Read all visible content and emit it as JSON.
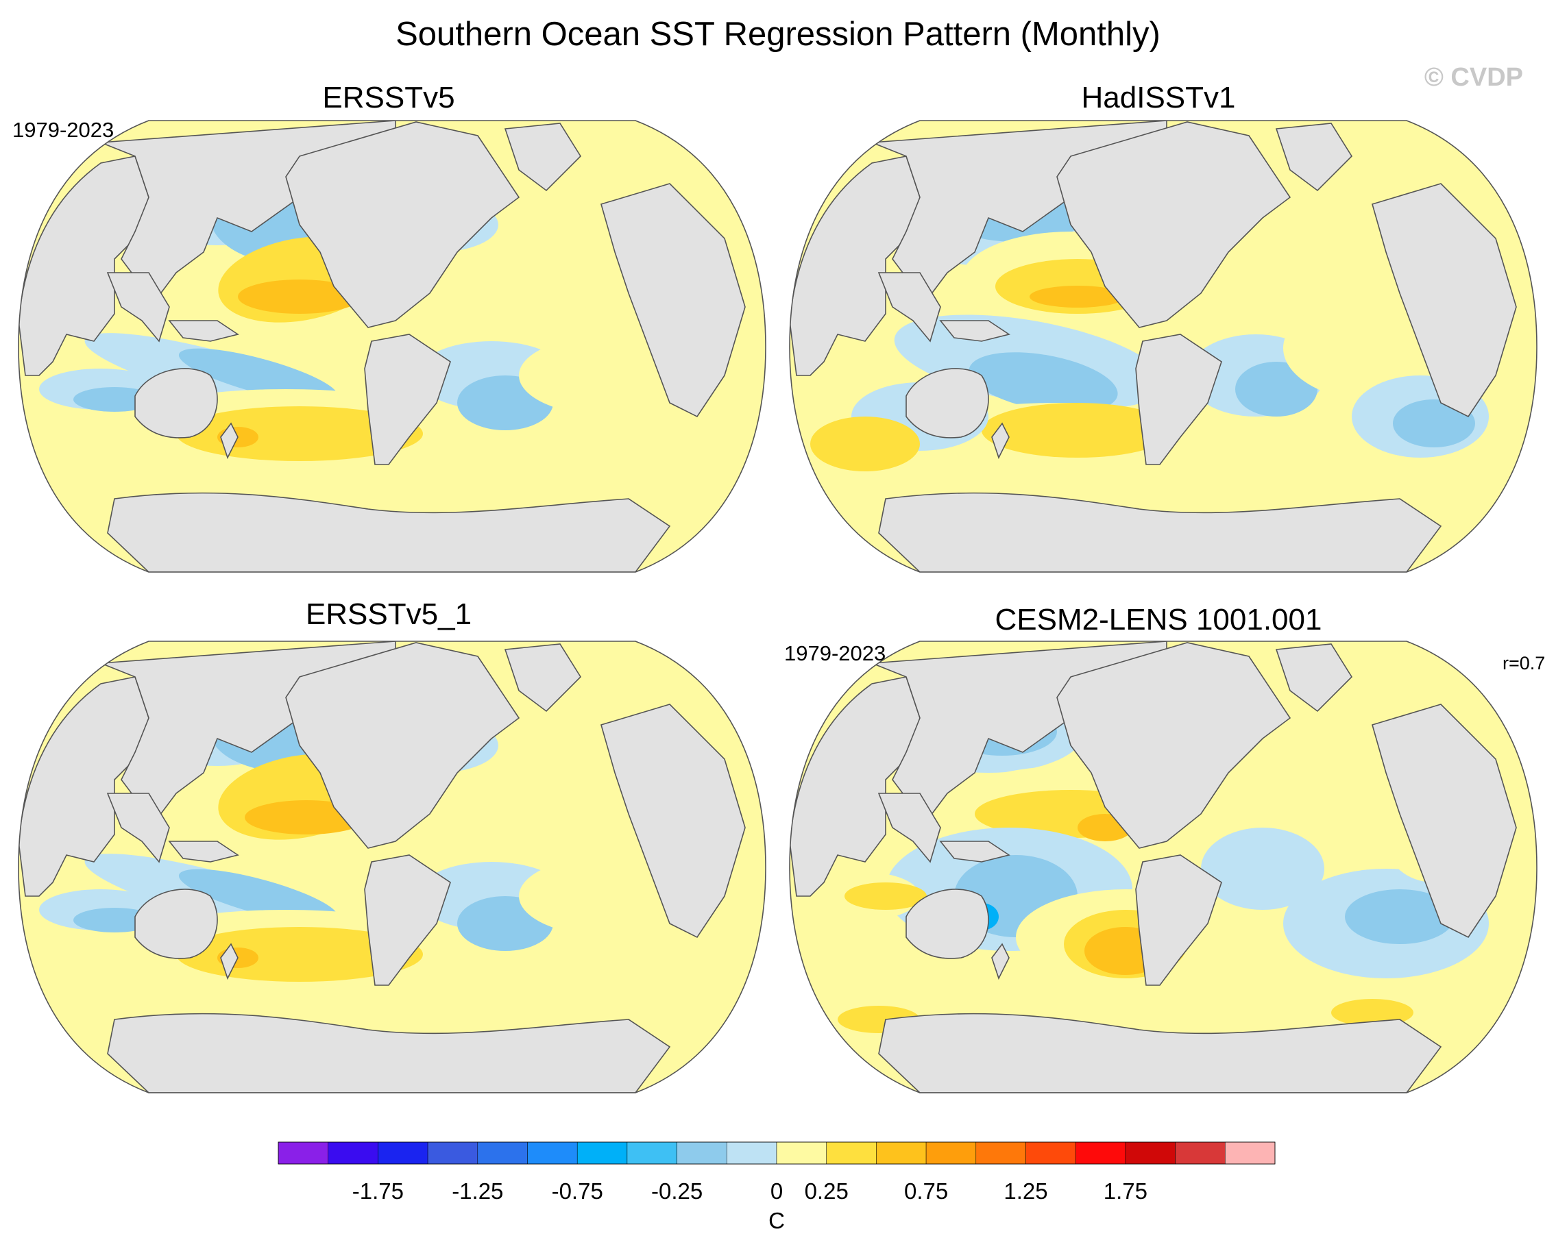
{
  "title": "Southern Ocean SST Regression Pattern (Monthly)",
  "watermark": "© CVDP",
  "colors": {
    "land": "#e2e2e2",
    "coast": "#555555",
    "frame": "#555555"
  },
  "chart_data": {
    "type": "heatmap",
    "projection": "Robinson (global map)",
    "panels": [
      {
        "id": "ersstv5",
        "title": "ERSSTv5",
        "period": "1979-2023",
        "correlation": "",
        "patterns": [
          "positive tropical Pacific tongue (0.25-0.75)",
          "negative North Pacific (-0.25 to -0.75)",
          "positive South Pacific / Southern Ocean band (0.25-0.75)"
        ]
      },
      {
        "id": "hadisstv1",
        "title": "HadISSTv1",
        "period": "",
        "correlation": "",
        "patterns": [
          "positive tropical Pacific tongue (0.25-0.75)",
          "negative North Pacific (-0.25 to -0.75)",
          "negative South Pacific subtropics (-0.25 to -0.75)"
        ]
      },
      {
        "id": "ersstv5_1",
        "title": "ERSSTv5_1",
        "period": "",
        "correlation": "",
        "patterns": [
          "positive tropical Pacific tongue (0.25-0.75)",
          "negative North Pacific (-0.25 to -0.75)",
          "positive South Pacific / Southern Ocean band (0.25-0.75)"
        ]
      },
      {
        "id": "cesm2",
        "title": "CESM2-LENS 1001.001",
        "period": "1979-2023",
        "correlation": "r=0.7",
        "patterns": [
          "positive tropical Pacific (0.25-0.75)",
          "negative southwest Pacific near New Zealand (-0.75 to -1.0)",
          "positive Southern Ocean band (0.25-0.75)"
        ]
      }
    ],
    "colorbar": {
      "unit": "C",
      "levels": [
        -2.0,
        -1.75,
        -1.5,
        -1.25,
        -1.0,
        -0.75,
        -0.5,
        -0.25,
        0,
        0.25,
        0.5,
        0.75,
        1.0,
        1.25,
        1.5,
        1.75,
        2.0
      ],
      "tick_labels": [
        "-1.75",
        "-1.25",
        "-0.75",
        "-0.25",
        "0",
        "0.25",
        "0.75",
        "1.25",
        "1.75"
      ],
      "tick_values": [
        -1.75,
        -1.25,
        -0.75,
        -0.25,
        0,
        0.25,
        0.75,
        1.25,
        1.75
      ],
      "colors": [
        "#8a20e8",
        "#3a0cf0",
        "#1a24f0",
        "#3a5ae0",
        "#2c72ec",
        "#1e8cfa",
        "#00b0f8",
        "#3ec0f4",
        "#8ecbec",
        "#bee2f4",
        "#fefaa2",
        "#fee03e",
        "#fec21c",
        "#fe9e0c",
        "#fe780a",
        "#fe4a0a",
        "#fe0a0a",
        "#d00808",
        "#d83838",
        "#fdb4b4"
      ]
    }
  }
}
